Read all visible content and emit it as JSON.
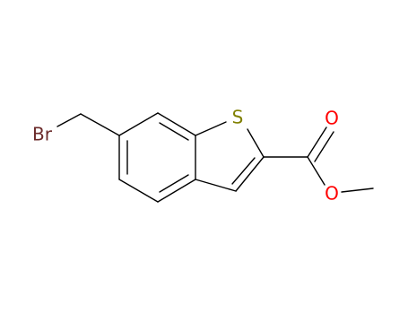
{
  "atoms": [
    {
      "label": "Br"
    },
    {
      "label": "S"
    },
    {
      "label": "O"
    },
    {
      "label": "O"
    }
  ]
}
